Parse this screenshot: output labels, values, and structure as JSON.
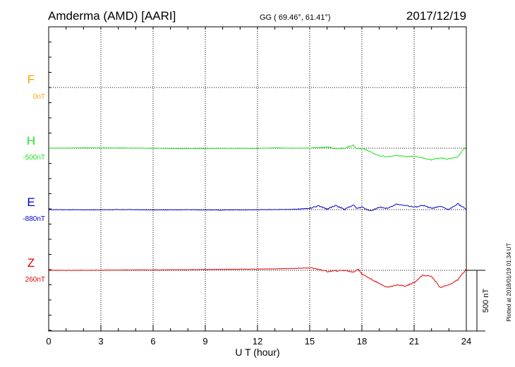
{
  "header": {
    "station": "Amderma (AMD)  [AARI]",
    "coords": "GG ( 69.46°,  61.41°)",
    "date": "2017/12/19"
  },
  "side_note": "Plotted at 2018/01/19 01:34 UT",
  "scale_label": "500 nT",
  "colors": {
    "F": "#f5a400",
    "H": "#22e022",
    "E": "#0000cc",
    "Z": "#e00000"
  },
  "chart_data": {
    "type": "line",
    "title": "Amderma (AMD)  [AARI]",
    "xlabel": "U T (hour)",
    "ylabel": "",
    "xlim": [
      0,
      24
    ],
    "x_ticks": [
      0,
      3,
      6,
      9,
      12,
      15,
      18,
      21,
      24
    ],
    "grid": true,
    "scale_bar_nT": 500,
    "series": [
      {
        "name": "F",
        "baseline_label": "0nT",
        "x": [],
        "offset_nT": []
      },
      {
        "name": "H",
        "baseline_label": "-500nT",
        "x": [
          0,
          2,
          4,
          6,
          8,
          10,
          12,
          13,
          14,
          15,
          16,
          16.5,
          17,
          17.5,
          17.7,
          18,
          18.5,
          19,
          19.5,
          20,
          20.5,
          21,
          21.5,
          22,
          22.5,
          23,
          23.5,
          24
        ],
        "offset_nT": [
          0,
          3,
          2,
          -1,
          -3,
          -1,
          -2,
          3,
          0,
          2,
          10,
          -5,
          0,
          25,
          -5,
          0,
          -30,
          -65,
          -70,
          -60,
          -70,
          -65,
          -80,
          -95,
          -80,
          -90,
          -70,
          15
        ]
      },
      {
        "name": "E",
        "baseline_label": "-880nT",
        "x": [
          0,
          2,
          4,
          6,
          8,
          10,
          12,
          14,
          15,
          15.5,
          16,
          16.5,
          17,
          17.5,
          17.7,
          18,
          18.5,
          19,
          19.5,
          20,
          20.5,
          21,
          21.5,
          22,
          22.5,
          23,
          23.5,
          24
        ],
        "offset_nT": [
          0,
          -2,
          0,
          -2,
          -1,
          -3,
          -1,
          2,
          10,
          30,
          5,
          35,
          0,
          40,
          10,
          20,
          -10,
          20,
          10,
          45,
          35,
          20,
          35,
          10,
          25,
          0,
          50,
          0
        ]
      },
      {
        "name": "Z",
        "baseline_label": "260nT",
        "x": [
          0,
          2,
          4,
          6,
          8,
          10,
          12,
          13,
          14,
          15,
          15.5,
          16,
          16.5,
          17,
          17.5,
          17.8,
          18,
          18.5,
          19,
          19.5,
          20,
          20.5,
          21,
          21.5,
          22,
          22.5,
          23,
          23.5,
          24
        ],
        "offset_nT": [
          0,
          0,
          2,
          3,
          5,
          8,
          10,
          12,
          15,
          20,
          10,
          -10,
          -5,
          0,
          -15,
          10,
          -30,
          -70,
          -110,
          -140,
          -120,
          -130,
          -100,
          -40,
          -50,
          -140,
          -120,
          -80,
          10
        ]
      }
    ]
  }
}
